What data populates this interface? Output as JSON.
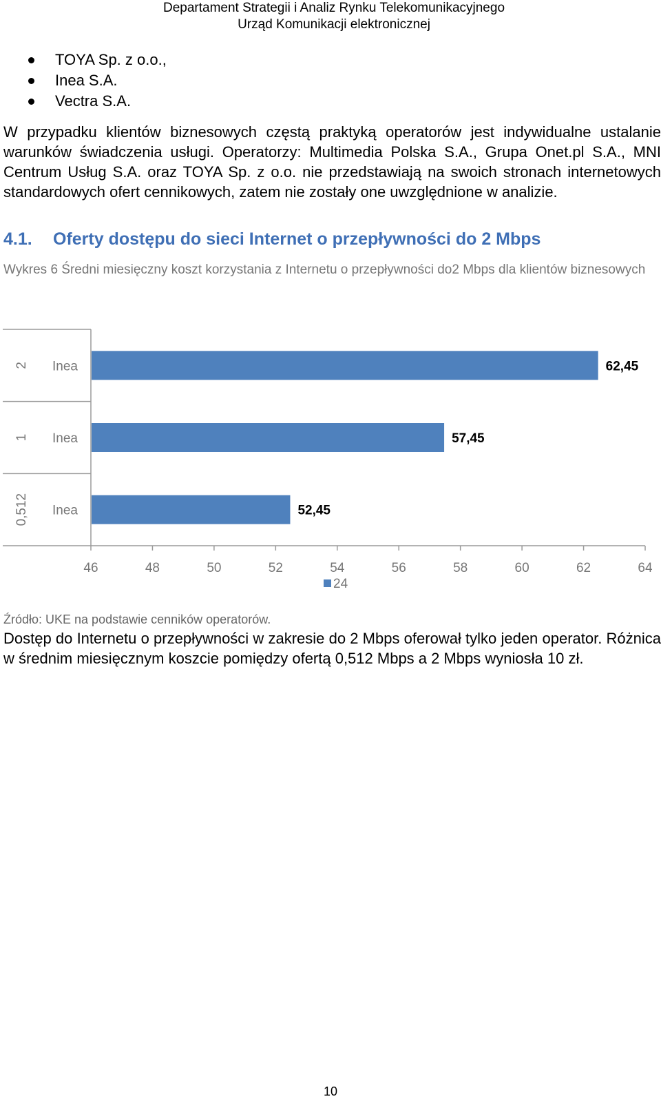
{
  "header": {
    "line1": "Departament Strategii i Analiz Rynku Telekomunikacyjnego",
    "line2": "Urząd Komunikacji elektronicznej"
  },
  "bullets": [
    "TOYA Sp. z o.o.,",
    "Inea S.A.",
    "Vectra S.A."
  ],
  "paragraph1": "W przypadku klientów biznesowych częstą praktyką operatorów jest indywidualne ustalanie warunków świadczenia usługi. Operatorzy: Multimedia Polska S.A., Grupa Onet.pl S.A., MNI Centrum Usług S.A. oraz TOYA Sp. z o.o. nie przedstawiają na swoich stronach internetowych standardowych ofert cennikowych, zatem nie zostały one uwzględnione w analizie.",
  "section": {
    "number": "4.1.",
    "title": "Oferty dostępu do sieci Internet o przepływności do 2 Mbps"
  },
  "caption": "Wykres 6 Średni miesięczny koszt korzystania z Internetu o przepływności do2 Mbps dla klientów biznesowych",
  "chart_data": {
    "type": "bar",
    "orientation": "horizontal",
    "groups": [
      {
        "group": "2",
        "category": "Inea",
        "value": 62.45,
        "label": "62,45"
      },
      {
        "group": "1",
        "category": "Inea",
        "value": 57.45,
        "label": "57,45"
      },
      {
        "group": "0,512",
        "category": "Inea",
        "value": 52.45,
        "label": "52,45"
      }
    ],
    "x_ticks": [
      "46",
      "48",
      "50",
      "52",
      "54",
      "56",
      "58",
      "60",
      "62",
      "64"
    ],
    "xlim": [
      46,
      64
    ],
    "series": [
      {
        "name": "24",
        "color": "#4f81bd"
      }
    ],
    "legend_position": "bottom",
    "grid": false
  },
  "source": "Źródło: UKE na podstawie cenników operatorów.",
  "paragraph2": "Dostęp do Internetu o przepływności w zakresie do 2 Mbps oferował tylko jeden operator. Różnica w średnim miesięcznym koszcie pomiędzy ofertą 0,512 Mbps a 2 Mbps wyniosła 10 zł.",
  "page_number": "10"
}
